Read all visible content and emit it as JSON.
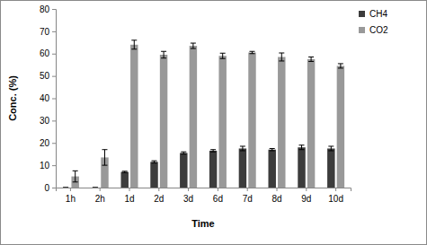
{
  "chart_data": {
    "type": "bar",
    "x_label": "Time",
    "y_label": "Conc. (%)",
    "categories": [
      "1h",
      "2h",
      "1d",
      "2d",
      "3d",
      "6d",
      "7d",
      "8d",
      "9d",
      "10d"
    ],
    "series": [
      {
        "name": "CH4",
        "color": "#3c3c3c",
        "values": [
          0,
          0,
          7,
          11.5,
          15.5,
          16.5,
          17.5,
          17,
          18,
          17.5
        ],
        "errors": [
          0,
          0,
          0.3,
          0.5,
          0.5,
          0.5,
          1,
          0.5,
          1,
          1
        ]
      },
      {
        "name": "CO2",
        "color": "#999999",
        "values": [
          5,
          13.5,
          64,
          59.5,
          63.5,
          59,
          60.5,
          58.5,
          57.5,
          54.5
        ],
        "errors": [
          2.5,
          3.5,
          2,
          1.5,
          1.2,
          1.2,
          0.5,
          1.8,
          1,
          1
        ]
      }
    ],
    "ylim": [
      0,
      80
    ],
    "yticks": [
      0,
      10,
      20,
      30,
      40,
      50,
      60,
      70,
      80
    ],
    "grid": false,
    "legend": "right"
  }
}
